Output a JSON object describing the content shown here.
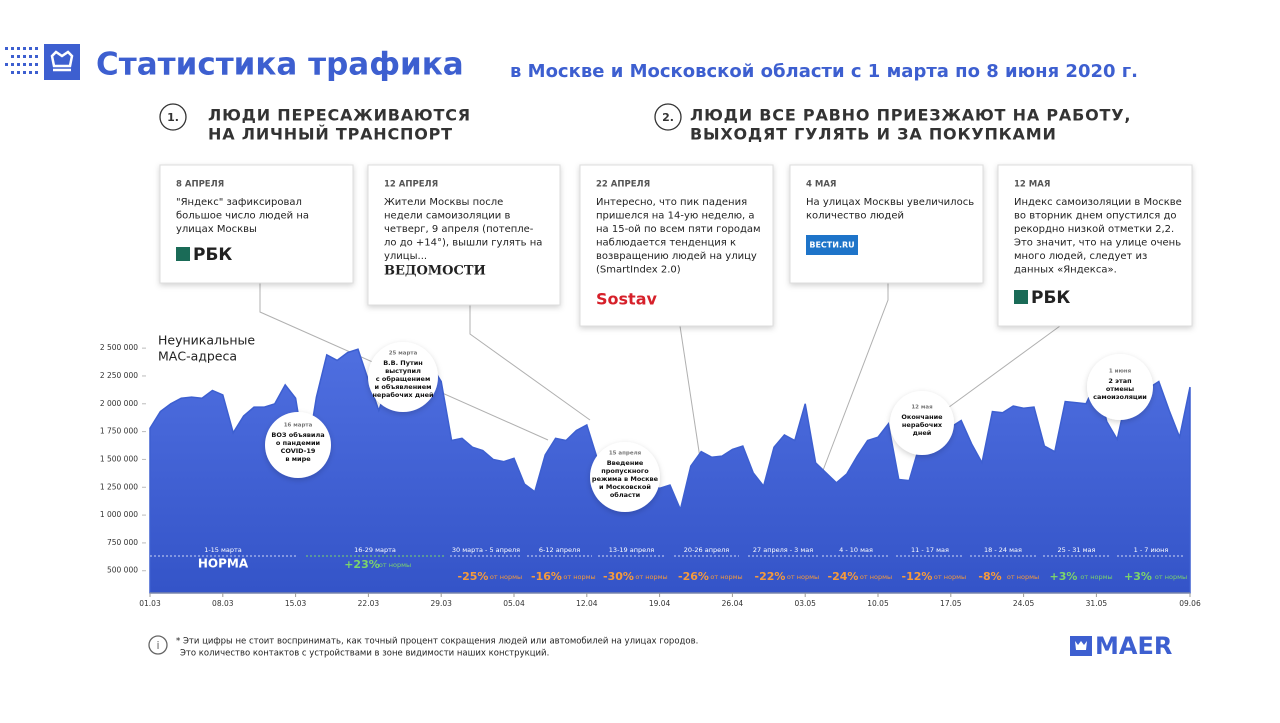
{
  "header": {
    "title": "Статистика трафика",
    "subtitle": "в Москве и Московской области с 1 марта по 8 июня 2020 г."
  },
  "sections": [
    {
      "number": "1.",
      "lines": [
        "ЛЮДИ ПЕРЕСАЖИВАЮТСЯ",
        "НА ЛИЧНЫЙ ТРАНСПОРТ"
      ]
    },
    {
      "number": "2.",
      "lines": [
        "ЛЮДИ ВСЕ РАВНО ПРИЕЗЖАЮТ НА РАБОТУ,",
        "ВЫХОДЯТ ГУЛЯТЬ И ЗА ПОКУПКАМИ"
      ]
    }
  ],
  "cards": [
    {
      "date": "8 АПРЕЛЯ",
      "text": [
        "\"Яндекс\" зафиксировал",
        "большое число людей на",
        "улицах Москвы"
      ],
      "source": "РБК"
    },
    {
      "date": "12 АПРЕЛЯ",
      "text": [
        "Жители Москвы после",
        "недели самоизоляции в",
        "четверг, 9 апреля (потепле-",
        "ло до +14°), вышли гулять на",
        "улицы..."
      ],
      "source": "ВЕДОМОСТИ"
    },
    {
      "date": "22 АПРЕЛЯ",
      "text": [
        "Интересно, что пик падения",
        "пришелся на 14-ую неделю, а",
        "на 15-ой по всем пяти городам",
        "наблюдается тенденция к",
        "возвращению людей на улицу",
        "(SmartIndex 2.0)"
      ],
      "source": "Sostav"
    },
    {
      "date": "4 МАЯ",
      "text": [
        "На улицах Москвы увеличилось",
        "количество людей"
      ],
      "source": "ВЕСТИ.RU"
    },
    {
      "date": "12 МАЯ",
      "text": [
        "Индекс самоизоляции в Москве",
        "во вторник днем опустился до",
        "рекордно низкой отметки 2,2.",
        "Это значит, что на улице очень",
        "много людей, следует из",
        "данных «Яндекса»."
      ],
      "source": "РБК"
    }
  ],
  "chart_data": {
    "type": "area",
    "y_label": [
      "Неуникальные",
      "МАС-адреса"
    ],
    "color": "#3d5fd0",
    "categories": [
      "01.03",
      null,
      null,
      null,
      null,
      null,
      null,
      "08.03",
      null,
      null,
      null,
      null,
      null,
      null,
      "15.03",
      null,
      null,
      null,
      null,
      null,
      null,
      "22.03",
      null,
      null,
      null,
      null,
      null,
      null,
      "29.03",
      null,
      null,
      null,
      null,
      null,
      null,
      "05.04",
      null,
      null,
      null,
      null,
      null,
      null,
      "12.04",
      null,
      null,
      null,
      null,
      null,
      null,
      "19.04",
      null,
      null,
      null,
      null,
      null,
      null,
      "26.04",
      null,
      null,
      null,
      null,
      null,
      null,
      "03.05",
      null,
      null,
      null,
      null,
      null,
      null,
      "10.05",
      null,
      null,
      null,
      null,
      null,
      null,
      "17.05",
      null,
      null,
      null,
      null,
      null,
      null,
      "24.05",
      null,
      null,
      null,
      null,
      null,
      null,
      "31.05",
      null,
      null,
      null,
      null,
      null,
      null,
      null,
      null,
      "09.06"
    ],
    "values": [
      1780000,
      1930000,
      2000000,
      2050000,
      2060000,
      2050000,
      2120000,
      2080000,
      1740000,
      1890000,
      1970000,
      1970000,
      2000000,
      2170000,
      2050000,
      1480000,
      2060000,
      2440000,
      2390000,
      2460000,
      2490000,
      2210000,
      1940000,
      2210000,
      2300000,
      2350000,
      2500000,
      2350000,
      2200000,
      1670000,
      1690000,
      1610000,
      1580000,
      1500000,
      1480000,
      1510000,
      1280000,
      1210000,
      1540000,
      1690000,
      1670000,
      1760000,
      1810000,
      1510000,
      1480000,
      1610000,
      1640000,
      1490000,
      1280000,
      1240000,
      1270000,
      1050000,
      1440000,
      1570000,
      1520000,
      1530000,
      1590000,
      1620000,
      1380000,
      1260000,
      1610000,
      1720000,
      1670000,
      2000000,
      1470000,
      1380000,
      1290000,
      1370000,
      1530000,
      1670000,
      1700000,
      1820000,
      1320000,
      1310000,
      1630000,
      1780000,
      1810000,
      1790000,
      1850000,
      1640000,
      1470000,
      1930000,
      1920000,
      1980000,
      1960000,
      1970000,
      1620000,
      1570000,
      2020000,
      2010000,
      2000000,
      2200000,
      1840000,
      1680000,
      2100000,
      2120000,
      2140000,
      2200000,
      1940000,
      1700000,
      2150000
    ],
    "ylim": [
      300000,
      2600000
    ],
    "yticks": [
      {
        "value": 500000,
        "label": "500 000"
      },
      {
        "value": 750000,
        "label": "750 000"
      },
      {
        "value": 1000000,
        "label": "1 000 000"
      },
      {
        "value": 1250000,
        "label": "1 250 000"
      },
      {
        "value": 1500000,
        "label": "1 500 000"
      },
      {
        "value": 1750000,
        "label": "1 750 000"
      },
      {
        "value": 2000000,
        "label": "2 000 000"
      },
      {
        "value": 2250000,
        "label": "2 250 000"
      },
      {
        "value": 2500000,
        "label": "2 500 000"
      }
    ],
    "periods": [
      {
        "dates": "1-15 марта",
        "change": "НОРМА"
      },
      {
        "dates": "16-29 марта",
        "change": "+23%",
        "note": "от нормы"
      },
      {
        "dates": "30 марта - 5 апреля",
        "change": "-25%",
        "note": "от нормы"
      },
      {
        "dates": "6-12 апреля",
        "change": "-16%",
        "note": "от нормы"
      },
      {
        "dates": "13-19 апреля",
        "change": "-30%",
        "note": "от нормы"
      },
      {
        "dates": "20-26 апреля",
        "change": "-26%",
        "note": "от нормы"
      },
      {
        "dates": "27 апреля - 3 мая",
        "change": "-22%",
        "note": "от нормы"
      },
      {
        "dates": "4 - 10 мая",
        "change": "-24%",
        "note": "от нормы"
      },
      {
        "dates": "11 - 17 мая",
        "change": "-12%",
        "note": "от нормы"
      },
      {
        "dates": "18 - 24 мая",
        "change": "-8%",
        "note": "от нормы"
      },
      {
        "dates": "25 - 31 мая",
        "change": "+3%",
        "note": "от нормы"
      },
      {
        "dates": "1 - 7 июня",
        "change": "+3%",
        "note": "от нормы"
      }
    ],
    "events": [
      {
        "date": "16 марта",
        "lines": [
          "ВОЗ объявила",
          "о пандемии",
          "COVID-19",
          "в мире"
        ]
      },
      {
        "date": "25 марта",
        "lines": [
          "В.В. Путин",
          "выступил",
          "с обращением",
          "и объявлением",
          "нерабочих дней"
        ]
      },
      {
        "date": "15 апреля",
        "lines": [
          "Введение",
          "пропускного",
          "режима в Москве",
          "и Московской",
          "области"
        ]
      },
      {
        "date": "12 мая",
        "lines": [
          "Окончание",
          "нерабочих",
          "дней"
        ]
      },
      {
        "date": "1 июня",
        "lines": [
          "2 этап",
          "отмены",
          "самоизоляции"
        ]
      }
    ]
  },
  "footer": {
    "note": [
      "* Эти цифры не стоит воспринимать, как точный процент сокращения людей или автомобилей на улицах городов.",
      "Это количество контактов с устройствами в зоне видимости наших конструкций."
    ],
    "brand": "MAER"
  }
}
